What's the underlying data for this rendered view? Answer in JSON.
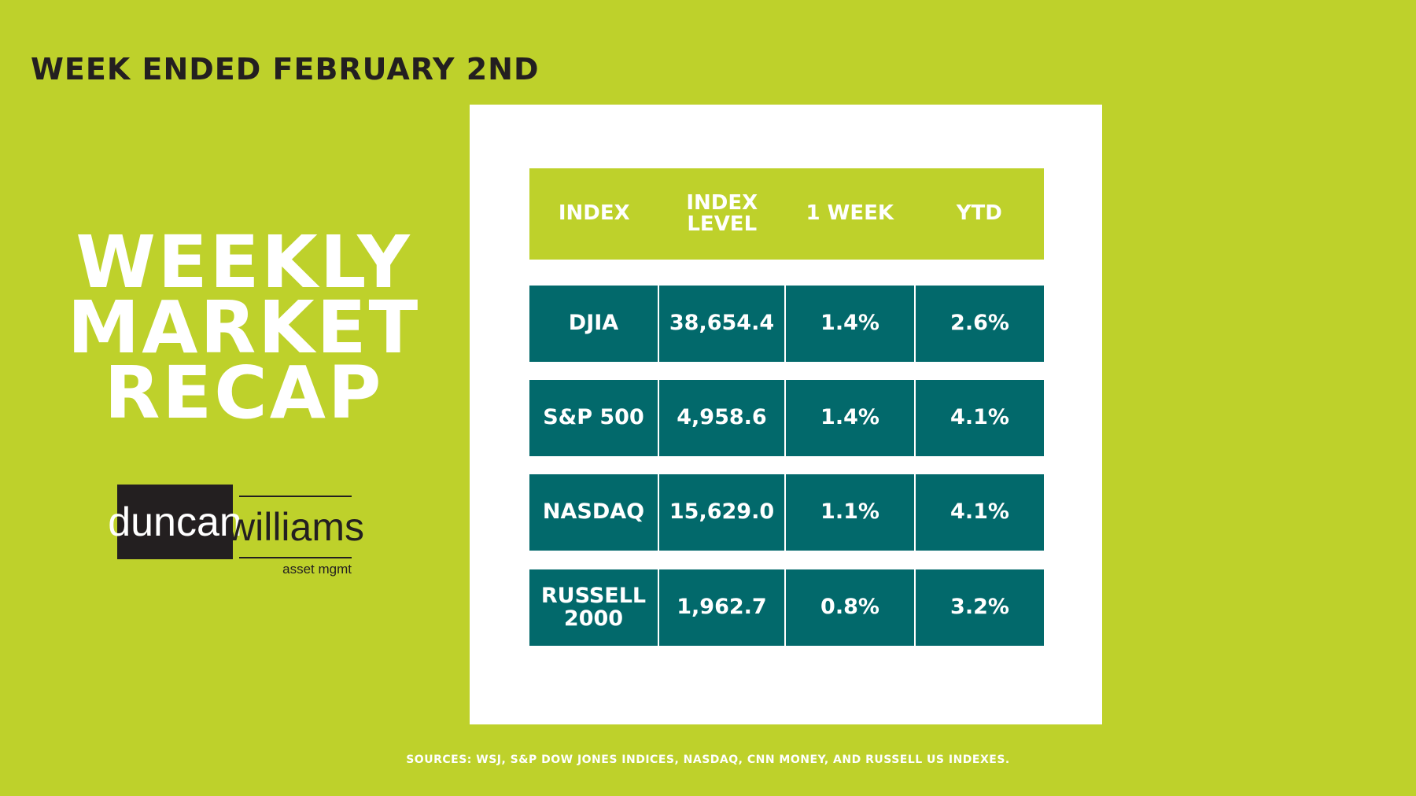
{
  "header": {
    "subtitle": "WEEK ENDED FEBRUARY 2ND",
    "title": [
      "WEEKLY",
      "MARKET",
      "RECAP"
    ]
  },
  "logo": {
    "left": "duncan",
    "right": "williams",
    "tagline": "asset mgmt"
  },
  "table": {
    "columns": [
      "INDEX",
      "INDEX LEVEL",
      "1 WEEK",
      "YTD"
    ],
    "rows": [
      [
        "DJIA",
        "38,654.4",
        "1.4%",
        "2.6%"
      ],
      [
        "S&P 500",
        "4,958.6",
        "1.4%",
        "4.1%"
      ],
      [
        "NASDAQ",
        "15,629.0",
        "1.1%",
        "4.1%"
      ],
      [
        "RUSSELL 2000",
        "1,962.7",
        "0.8%",
        "3.2%"
      ]
    ]
  },
  "footer": {
    "sources": "SOURCES: WSJ, S&P DOW JONES INDICES, NASDAQ, CNN  MONEY, AND  RUSSELL US INDEXES."
  }
}
